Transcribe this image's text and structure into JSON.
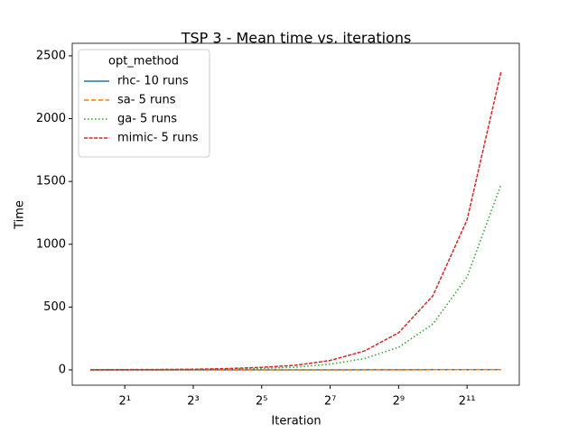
{
  "chart_data": {
    "type": "line",
    "title": "TSP 3 - Mean time vs. iterations",
    "xlabel": "Iteration",
    "ylabel": "Time",
    "x": [
      1,
      2,
      4,
      8,
      16,
      32,
      64,
      128,
      256,
      512,
      1024,
      2048,
      4096
    ],
    "xscale": "log2",
    "xlim": [
      0.69,
      5900
    ],
    "xticks": [
      {
        "value": 2,
        "label": "2¹"
      },
      {
        "value": 8,
        "label": "2³"
      },
      {
        "value": 32,
        "label": "2⁵"
      },
      {
        "value": 128,
        "label": "2⁷"
      },
      {
        "value": 512,
        "label": "2⁹"
      },
      {
        "value": 2048,
        "label": "2¹¹"
      }
    ],
    "ylim": [
      -122,
      2600
    ],
    "yticks": [
      0,
      500,
      1000,
      1500,
      2000,
      2500
    ],
    "legend_title": "opt_method",
    "legend_loc": "upper left",
    "series": [
      {
        "name": "rhc- 10 runs",
        "color": "#1f77b4",
        "linestyle": "solid",
        "values": [
          0,
          0,
          0,
          0,
          0.1,
          0.1,
          0.2,
          0.3,
          0.5,
          0.8,
          1.2,
          1.6,
          2
        ]
      },
      {
        "name": "sa- 5 runs",
        "color": "#ff7f0e",
        "linestyle": "dashed",
        "values": [
          0,
          0,
          0,
          0,
          0.1,
          0.1,
          0.2,
          0.3,
          0.5,
          0.8,
          1.2,
          1.6,
          2
        ]
      },
      {
        "name": "ga- 5 runs",
        "color": "#2ca02c",
        "linestyle": "dotted",
        "values": [
          0.4,
          0.8,
          1.5,
          3,
          6,
          11,
          22,
          45,
          90,
          180,
          365,
          740,
          1480
        ]
      },
      {
        "name": "mimic- 5 runs",
        "color": "#d62728",
        "linestyle": "dashdot",
        "values": [
          1,
          2,
          3,
          5,
          10,
          20,
          37,
          75,
          150,
          295,
          590,
          1195,
          2380
        ]
      }
    ]
  }
}
